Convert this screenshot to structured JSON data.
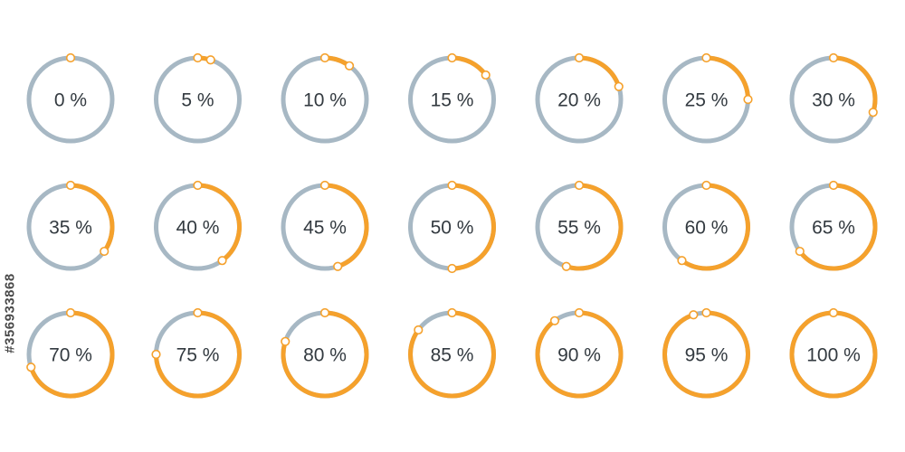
{
  "watermark_id": "#356933868",
  "colors": {
    "track": "#a7b8c4",
    "progress": "#f5a12c",
    "marker_fill": "#ffffff",
    "text": "#333a40"
  },
  "gauges": [
    {
      "value": 0,
      "label": "0 %"
    },
    {
      "value": 5,
      "label": "5 %"
    },
    {
      "value": 10,
      "label": "10 %"
    },
    {
      "value": 15,
      "label": "15 %"
    },
    {
      "value": 20,
      "label": "20 %"
    },
    {
      "value": 25,
      "label": "25 %"
    },
    {
      "value": 30,
      "label": "30 %"
    },
    {
      "value": 35,
      "label": "35 %"
    },
    {
      "value": 40,
      "label": "40 %"
    },
    {
      "value": 45,
      "label": "45 %"
    },
    {
      "value": 50,
      "label": "50 %"
    },
    {
      "value": 55,
      "label": "55 %"
    },
    {
      "value": 60,
      "label": "60 %"
    },
    {
      "value": 65,
      "label": "65 %"
    },
    {
      "value": 70,
      "label": "70 %"
    },
    {
      "value": 75,
      "label": "75 %"
    },
    {
      "value": 80,
      "label": "80 %"
    },
    {
      "value": 85,
      "label": "85 %"
    },
    {
      "value": 90,
      "label": "90 %"
    },
    {
      "value": 95,
      "label": "95 %"
    },
    {
      "value": 100,
      "label": "100 %"
    }
  ]
}
